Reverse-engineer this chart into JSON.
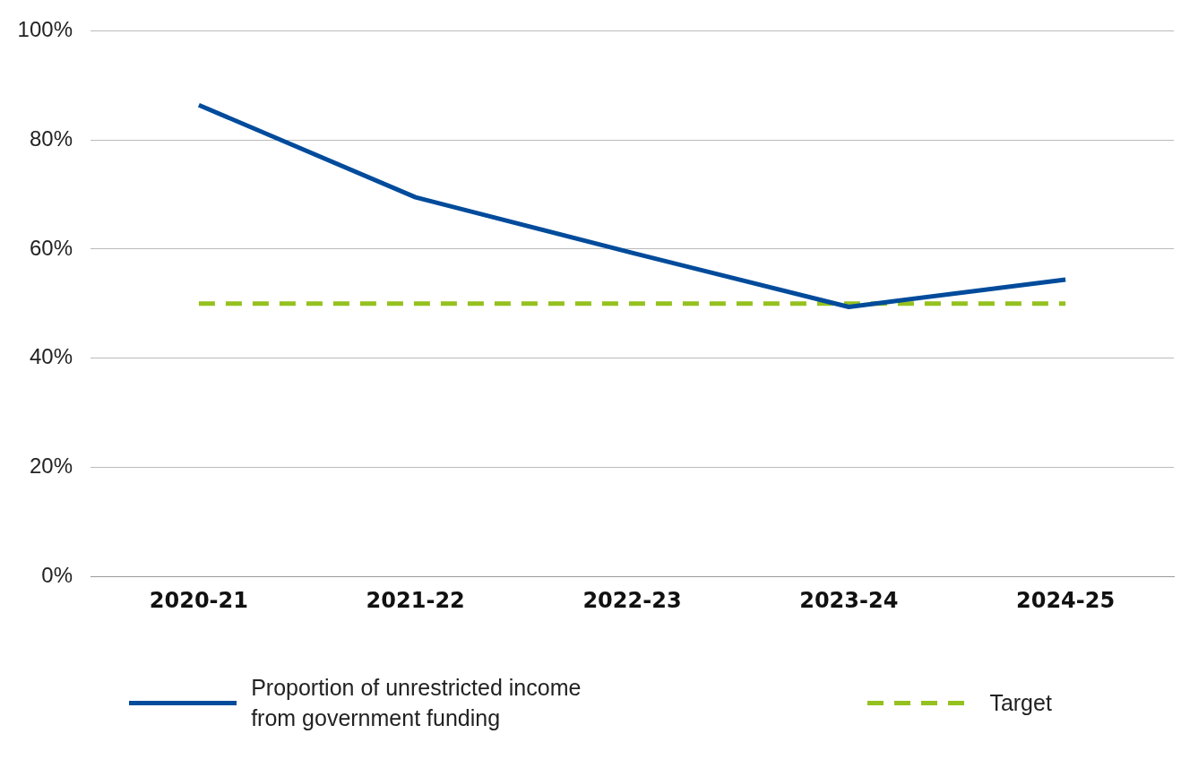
{
  "chart_data": {
    "type": "line",
    "categories": [
      "2020-21",
      "2021-22",
      "2022-23",
      "2023-24",
      "2024-25"
    ],
    "series": [
      {
        "name": "Proportion of unrestricted income from government funding",
        "color": "#004b9b",
        "values": [
          86.4,
          69.5,
          59.3,
          49.4,
          54.4
        ]
      },
      {
        "name": "Target",
        "color": "#95c11f",
        "values": [
          50,
          50,
          50,
          50,
          50
        ],
        "line_style": "dashed"
      }
    ],
    "ylim": [
      0,
      100
    ],
    "yticks": [
      {
        "value": 0,
        "label": "0%"
      },
      {
        "value": 20,
        "label": "20%"
      },
      {
        "value": 40,
        "label": "40%"
      },
      {
        "value": 60,
        "label": "60%"
      },
      {
        "value": 80,
        "label": "80%"
      },
      {
        "value": 100,
        "label": "100%"
      }
    ],
    "grid": "y",
    "legend": "bottom",
    "marker": "none"
  }
}
